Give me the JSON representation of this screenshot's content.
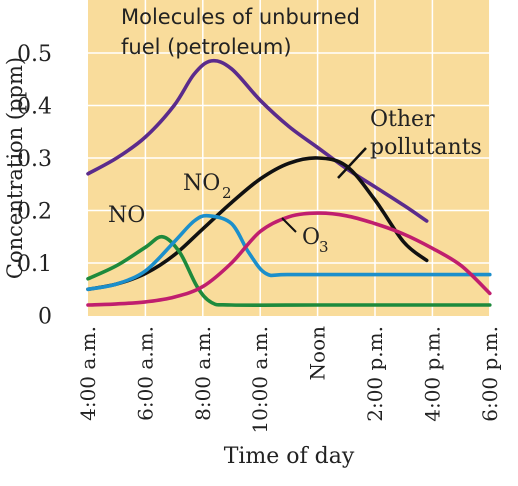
{
  "chart_data": {
    "type": "line",
    "title": "",
    "xlabel": "Time of day",
    "ylabel": "Concentration (ppm)",
    "x_ticks": [
      {
        "hour": 4,
        "label": "4:00 a.m."
      },
      {
        "hour": 6,
        "label": "6:00 a.m."
      },
      {
        "hour": 8,
        "label": "8:00 a.m."
      },
      {
        "hour": 10,
        "label": "10:00 a.m."
      },
      {
        "hour": 12,
        "label": "Noon"
      },
      {
        "hour": 14,
        "label": "2:00 p.m."
      },
      {
        "hour": 16,
        "label": "4:00 p.m."
      },
      {
        "hour": 18,
        "label": "6:00 p.m."
      }
    ],
    "y_ticks": [
      0,
      0.1,
      0.2,
      0.3,
      0.4,
      0.5
    ],
    "y_tick_labels": [
      "0",
      "0.1",
      "0.2",
      "0.3",
      "0.4",
      "0.5"
    ],
    "xlim": [
      4,
      18
    ],
    "ylim": [
      0,
      0.58
    ],
    "background_color": "#f9dc9b",
    "grid": true,
    "grid_color": "#ffffff",
    "series": [
      {
        "key": "fuel",
        "color": "#5b2b8c",
        "label_lines": [
          "Molecules of unburned",
          "fuel (petroleum)"
        ],
        "points": [
          [
            4,
            0.27
          ],
          [
            5,
            0.3
          ],
          [
            6,
            0.34
          ],
          [
            7,
            0.4
          ],
          [
            7.7,
            0.46
          ],
          [
            8.3,
            0.485
          ],
          [
            9,
            0.47
          ],
          [
            10,
            0.41
          ],
          [
            11,
            0.36
          ],
          [
            12,
            0.32
          ],
          [
            13,
            0.28
          ],
          [
            14,
            0.245
          ],
          [
            15,
            0.21
          ],
          [
            15.8,
            0.18
          ]
        ]
      },
      {
        "key": "other",
        "color": "#111111",
        "label_lines": [
          "Other",
          "pollutants"
        ],
        "points": [
          [
            4,
            0.05
          ],
          [
            5,
            0.06
          ],
          [
            6,
            0.08
          ],
          [
            7,
            0.115
          ],
          [
            8,
            0.165
          ],
          [
            9,
            0.215
          ],
          [
            10,
            0.26
          ],
          [
            11,
            0.29
          ],
          [
            12,
            0.3
          ],
          [
            13,
            0.285
          ],
          [
            14,
            0.22
          ],
          [
            15,
            0.14
          ],
          [
            15.8,
            0.105
          ]
        ]
      },
      {
        "key": "no",
        "color": "#1e8a3c",
        "label": "NO",
        "points": [
          [
            4,
            0.07
          ],
          [
            5,
            0.095
          ],
          [
            6,
            0.13
          ],
          [
            6.6,
            0.15
          ],
          [
            7.2,
            0.12
          ],
          [
            7.8,
            0.055
          ],
          [
            8.3,
            0.025
          ],
          [
            9,
            0.02
          ],
          [
            12,
            0.02
          ],
          [
            15,
            0.02
          ],
          [
            18,
            0.02
          ]
        ]
      },
      {
        "key": "no2",
        "color": "#1c8fcb",
        "label": "NO",
        "label_sub": "2",
        "points": [
          [
            4,
            0.05
          ],
          [
            5,
            0.06
          ],
          [
            6,
            0.085
          ],
          [
            7,
            0.14
          ],
          [
            7.7,
            0.18
          ],
          [
            8.2,
            0.19
          ],
          [
            9,
            0.175
          ],
          [
            9.6,
            0.12
          ],
          [
            10.2,
            0.08
          ],
          [
            11,
            0.078
          ],
          [
            14,
            0.078
          ],
          [
            18,
            0.078
          ]
        ]
      },
      {
        "key": "o3",
        "color": "#c01e6e",
        "label": "O",
        "label_sub": "3",
        "points": [
          [
            4,
            0.02
          ],
          [
            5,
            0.022
          ],
          [
            6,
            0.026
          ],
          [
            7,
            0.035
          ],
          [
            8,
            0.055
          ],
          [
            9,
            0.1
          ],
          [
            10,
            0.16
          ],
          [
            11,
            0.188
          ],
          [
            12,
            0.195
          ],
          [
            13,
            0.19
          ],
          [
            14,
            0.175
          ],
          [
            15,
            0.155
          ],
          [
            16,
            0.128
          ],
          [
            17,
            0.095
          ],
          [
            18,
            0.042
          ]
        ]
      }
    ]
  }
}
